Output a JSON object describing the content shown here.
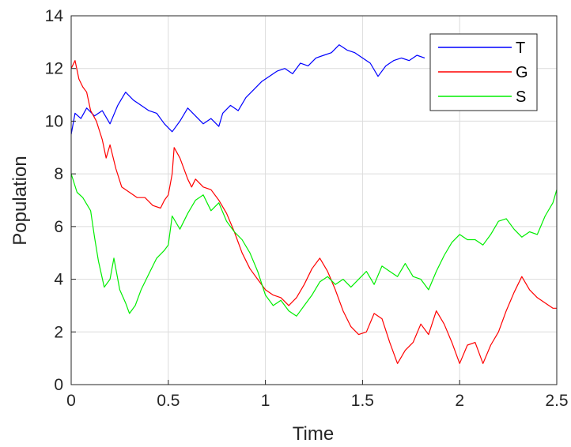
{
  "chart_data": {
    "type": "line",
    "title": "",
    "xlabel": "Time",
    "ylabel": "Population",
    "xlim": [
      0,
      2.5
    ],
    "ylim": [
      0,
      14
    ],
    "xticks": [
      0,
      0.5,
      1,
      1.5,
      2,
      2.5
    ],
    "xtick_labels": [
      "0",
      "0.5",
      "1",
      "1.5",
      "2",
      "2.5"
    ],
    "yticks": [
      0,
      2,
      4,
      6,
      8,
      10,
      12,
      14
    ],
    "ytick_labels": [
      "0",
      "2",
      "4",
      "6",
      "8",
      "10",
      "12",
      "14"
    ],
    "grid": true,
    "legend_position": "top-right",
    "series": [
      {
        "name": "T",
        "color": "#0000ff",
        "points": [
          [
            0,
            9.5
          ],
          [
            0.02,
            10.3
          ],
          [
            0.05,
            10.1
          ],
          [
            0.08,
            10.5
          ],
          [
            0.12,
            10.2
          ],
          [
            0.16,
            10.4
          ],
          [
            0.2,
            9.9
          ],
          [
            0.24,
            10.6
          ],
          [
            0.28,
            11.1
          ],
          [
            0.32,
            10.8
          ],
          [
            0.36,
            10.6
          ],
          [
            0.4,
            10.4
          ],
          [
            0.44,
            10.3
          ],
          [
            0.48,
            9.9
          ],
          [
            0.52,
            9.6
          ],
          [
            0.56,
            10.0
          ],
          [
            0.6,
            10.5
          ],
          [
            0.64,
            10.2
          ],
          [
            0.68,
            9.9
          ],
          [
            0.72,
            10.1
          ],
          [
            0.76,
            9.8
          ],
          [
            0.78,
            10.3
          ],
          [
            0.82,
            10.6
          ],
          [
            0.86,
            10.4
          ],
          [
            0.9,
            10.9
          ],
          [
            0.94,
            11.2
          ],
          [
            0.98,
            11.5
          ],
          [
            1.02,
            11.7
          ],
          [
            1.06,
            11.9
          ],
          [
            1.1,
            12.0
          ],
          [
            1.14,
            11.8
          ],
          [
            1.18,
            12.2
          ],
          [
            1.22,
            12.1
          ],
          [
            1.26,
            12.4
          ],
          [
            1.3,
            12.5
          ],
          [
            1.34,
            12.6
          ],
          [
            1.38,
            12.9
          ],
          [
            1.42,
            12.7
          ],
          [
            1.46,
            12.6
          ],
          [
            1.5,
            12.4
          ],
          [
            1.54,
            12.2
          ],
          [
            1.58,
            11.7
          ],
          [
            1.62,
            12.1
          ],
          [
            1.66,
            12.3
          ],
          [
            1.7,
            12.4
          ],
          [
            1.74,
            12.3
          ],
          [
            1.78,
            12.5
          ],
          [
            1.82,
            12.4
          ]
        ]
      },
      {
        "name": "G",
        "color": "#ff0000",
        "points": [
          [
            0,
            12.0
          ],
          [
            0.02,
            12.3
          ],
          [
            0.04,
            11.6
          ],
          [
            0.06,
            11.3
          ],
          [
            0.08,
            11.1
          ],
          [
            0.1,
            10.4
          ],
          [
            0.13,
            10.0
          ],
          [
            0.16,
            9.3
          ],
          [
            0.18,
            8.6
          ],
          [
            0.2,
            9.1
          ],
          [
            0.23,
            8.2
          ],
          [
            0.26,
            7.5
          ],
          [
            0.3,
            7.3
          ],
          [
            0.34,
            7.1
          ],
          [
            0.38,
            7.1
          ],
          [
            0.42,
            6.8
          ],
          [
            0.46,
            6.7
          ],
          [
            0.48,
            7.0
          ],
          [
            0.5,
            7.2
          ],
          [
            0.52,
            8.0
          ],
          [
            0.53,
            9.0
          ],
          [
            0.56,
            8.6
          ],
          [
            0.6,
            7.8
          ],
          [
            0.62,
            7.5
          ],
          [
            0.64,
            7.8
          ],
          [
            0.68,
            7.5
          ],
          [
            0.72,
            7.4
          ],
          [
            0.76,
            7.0
          ],
          [
            0.8,
            6.5
          ],
          [
            0.84,
            5.8
          ],
          [
            0.88,
            5.0
          ],
          [
            0.92,
            4.4
          ],
          [
            0.96,
            4.0
          ],
          [
            1.0,
            3.6
          ],
          [
            1.04,
            3.4
          ],
          [
            1.08,
            3.3
          ],
          [
            1.12,
            3.0
          ],
          [
            1.16,
            3.3
          ],
          [
            1.2,
            3.8
          ],
          [
            1.24,
            4.4
          ],
          [
            1.28,
            4.8
          ],
          [
            1.32,
            4.3
          ],
          [
            1.36,
            3.6
          ],
          [
            1.4,
            2.8
          ],
          [
            1.44,
            2.2
          ],
          [
            1.48,
            1.9
          ],
          [
            1.52,
            2.0
          ],
          [
            1.56,
            2.7
          ],
          [
            1.6,
            2.5
          ],
          [
            1.64,
            1.6
          ],
          [
            1.68,
            0.8
          ],
          [
            1.72,
            1.3
          ],
          [
            1.76,
            1.6
          ],
          [
            1.8,
            2.3
          ],
          [
            1.84,
            1.9
          ],
          [
            1.88,
            2.8
          ],
          [
            1.92,
            2.3
          ],
          [
            1.96,
            1.6
          ],
          [
            2.0,
            0.8
          ],
          [
            2.04,
            1.5
          ],
          [
            2.08,
            1.6
          ],
          [
            2.12,
            0.8
          ],
          [
            2.16,
            1.5
          ],
          [
            2.2,
            2.0
          ],
          [
            2.24,
            2.8
          ],
          [
            2.28,
            3.5
          ],
          [
            2.32,
            4.1
          ],
          [
            2.36,
            3.6
          ],
          [
            2.4,
            3.3
          ],
          [
            2.44,
            3.1
          ],
          [
            2.48,
            2.9
          ],
          [
            2.5,
            2.9
          ]
        ]
      },
      {
        "name": "S",
        "color": "#00ee00",
        "points": [
          [
            0,
            8.0
          ],
          [
            0.03,
            7.3
          ],
          [
            0.06,
            7.1
          ],
          [
            0.1,
            6.6
          ],
          [
            0.12,
            5.6
          ],
          [
            0.14,
            4.7
          ],
          [
            0.17,
            3.7
          ],
          [
            0.2,
            4.0
          ],
          [
            0.22,
            4.8
          ],
          [
            0.25,
            3.6
          ],
          [
            0.28,
            3.1
          ],
          [
            0.3,
            2.7
          ],
          [
            0.33,
            3.0
          ],
          [
            0.36,
            3.6
          ],
          [
            0.4,
            4.2
          ],
          [
            0.44,
            4.8
          ],
          [
            0.48,
            5.1
          ],
          [
            0.5,
            5.3
          ],
          [
            0.52,
            6.4
          ],
          [
            0.56,
            5.9
          ],
          [
            0.6,
            6.5
          ],
          [
            0.64,
            7.0
          ],
          [
            0.68,
            7.2
          ],
          [
            0.72,
            6.6
          ],
          [
            0.76,
            6.9
          ],
          [
            0.8,
            6.2
          ],
          [
            0.84,
            5.8
          ],
          [
            0.88,
            5.5
          ],
          [
            0.92,
            5.0
          ],
          [
            0.96,
            4.3
          ],
          [
            1.0,
            3.4
          ],
          [
            1.04,
            3.0
          ],
          [
            1.08,
            3.2
          ],
          [
            1.12,
            2.8
          ],
          [
            1.16,
            2.6
          ],
          [
            1.2,
            3.0
          ],
          [
            1.24,
            3.4
          ],
          [
            1.28,
            3.9
          ],
          [
            1.32,
            4.1
          ],
          [
            1.36,
            3.8
          ],
          [
            1.4,
            4.0
          ],
          [
            1.44,
            3.7
          ],
          [
            1.48,
            4.0
          ],
          [
            1.52,
            4.3
          ],
          [
            1.56,
            3.8
          ],
          [
            1.6,
            4.5
          ],
          [
            1.64,
            4.3
          ],
          [
            1.68,
            4.1
          ],
          [
            1.72,
            4.6
          ],
          [
            1.76,
            4.1
          ],
          [
            1.8,
            4.0
          ],
          [
            1.84,
            3.6
          ],
          [
            1.88,
            4.3
          ],
          [
            1.92,
            4.9
          ],
          [
            1.96,
            5.4
          ],
          [
            2.0,
            5.7
          ],
          [
            2.04,
            5.5
          ],
          [
            2.08,
            5.5
          ],
          [
            2.12,
            5.3
          ],
          [
            2.16,
            5.7
          ],
          [
            2.2,
            6.2
          ],
          [
            2.24,
            6.3
          ],
          [
            2.28,
            5.9
          ],
          [
            2.32,
            5.6
          ],
          [
            2.36,
            5.8
          ],
          [
            2.4,
            5.7
          ],
          [
            2.44,
            6.4
          ],
          [
            2.48,
            6.9
          ],
          [
            2.5,
            7.4
          ]
        ]
      }
    ]
  }
}
